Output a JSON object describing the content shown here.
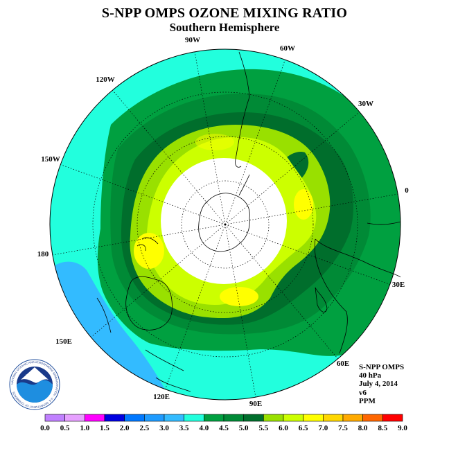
{
  "title": "S-NPP OMPS OZONE MIXING RATIO",
  "subtitle": "Southern Hemisphere",
  "longitude_labels": {
    "lon_90w": "90W",
    "lon_60w": "60W",
    "lon_30w": "30W",
    "lon_0": "0",
    "lon_30e": "30E",
    "lon_60e": "60E",
    "lon_90e": "90E",
    "lon_120e": "120E",
    "lon_150e": "150E",
    "lon_180": "180",
    "lon_150w": "150W",
    "lon_120w": "120W"
  },
  "info": {
    "instrument": "S-NPP OMPS",
    "level": "40 hPa",
    "date": "July 4, 2014",
    "version": "v6",
    "units": "PPM"
  },
  "logo": {
    "text": "NOAA",
    "ring_text": "NATIONAL OCEANIC AND ATMOSPHERIC ADMINISTRATION · U.S. DEPARTMENT OF COMMERCE"
  },
  "colorbar": {
    "ticks": [
      "0.0",
      "0.5",
      "1.0",
      "1.5",
      "2.0",
      "2.5",
      "3.0",
      "3.5",
      "4.0",
      "4.5",
      "5.0",
      "5.5",
      "6.0",
      "6.5",
      "7.0",
      "7.5",
      "8.0",
      "8.5",
      "9.0"
    ],
    "colors": [
      "#c080ff",
      "#e6a0ff",
      "#ff00ff",
      "#0000e0",
      "#0078ff",
      "#1e9bff",
      "#33bbff",
      "#22ffdd",
      "#00a040",
      "#008a36",
      "#006e2c",
      "#99e000",
      "#ccff00",
      "#ffff00",
      "#ffd700",
      "#ffaa00",
      "#ff6600",
      "#ff0000",
      "#8b5a3c"
    ]
  },
  "colors": {
    "level_3_5_4_0": "#22ffdd",
    "level_3_0_3_5": "#33bbff",
    "level_4_0_4_5": "#00a040",
    "level_4_5_5_0": "#008a36",
    "level_5_0_5_5": "#006e2c",
    "level_5_5_6_0": "#99e000",
    "level_6_0_6_5": "#ccff00",
    "level_6_5_7_0": "#ffff00",
    "polar_night": "#ffffff"
  }
}
